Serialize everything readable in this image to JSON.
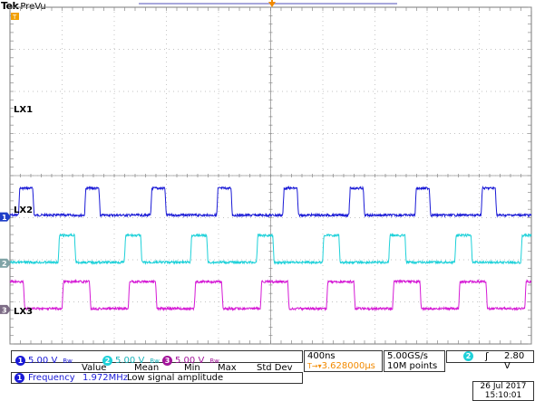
{
  "header": {
    "brand": "Tek",
    "mode": "PreVu"
  },
  "channels": [
    {
      "number": "1",
      "label": "LX1",
      "scale": "5.00 V",
      "color": "#1a1ad6",
      "marker_color": "#1f3fc8",
      "bw_symbol": "Bw"
    },
    {
      "number": "2",
      "label": "LX2",
      "scale": "5.00 V",
      "color": "#1ed1d9",
      "marker_color": "#7fa3a6",
      "bw_symbol": "Bw"
    },
    {
      "number": "3",
      "label": "LX3",
      "scale": "5.00 V",
      "color": "#d51ad5",
      "marker_color": "#7d6c86",
      "bw_symbol": "Bw"
    }
  ],
  "timebase": {
    "per_div": "400ns",
    "trigger_position": "3.628000µs"
  },
  "acquisition": {
    "sample_rate": "5.00GS/s",
    "record_length": "10M points"
  },
  "trigger": {
    "source": "2",
    "slope_symbol": "ʃ",
    "level": "2.80 V"
  },
  "measurement": {
    "headers": [
      "Value",
      "Mean",
      "Min",
      "Max",
      "Std Dev"
    ],
    "source": "1",
    "name": "Frequency",
    "value": "1.972MHz",
    "note": "Low signal amplitude"
  },
  "datetime": {
    "date": "26 Jul  2017",
    "time": "15:10:01"
  },
  "chart_data": {
    "type": "line",
    "x_unit": "ns",
    "x_range": [
      0,
      4000
    ],
    "period_ns": 507,
    "grid": {
      "x_divisions": 10,
      "y_divisions": 8
    },
    "series": [
      {
        "name": "LX1",
        "high_ns_per_cycle": 110,
        "first_rise_ns": 65,
        "high_level": 3.4,
        "low_level": 0.2,
        "offset_div": 3.02
      },
      {
        "name": "LX2",
        "high_ns_per_cycle": 125,
        "first_rise_ns": 370,
        "high_level": 3.3,
        "low_level": 0.1,
        "offset_div": 1.92
      },
      {
        "name": "LX3",
        "high_ns_per_cycle": 210,
        "first_rise_ns": 400,
        "high_level": 3.3,
        "low_level": 0.1,
        "offset_div": 0.82
      }
    ]
  }
}
